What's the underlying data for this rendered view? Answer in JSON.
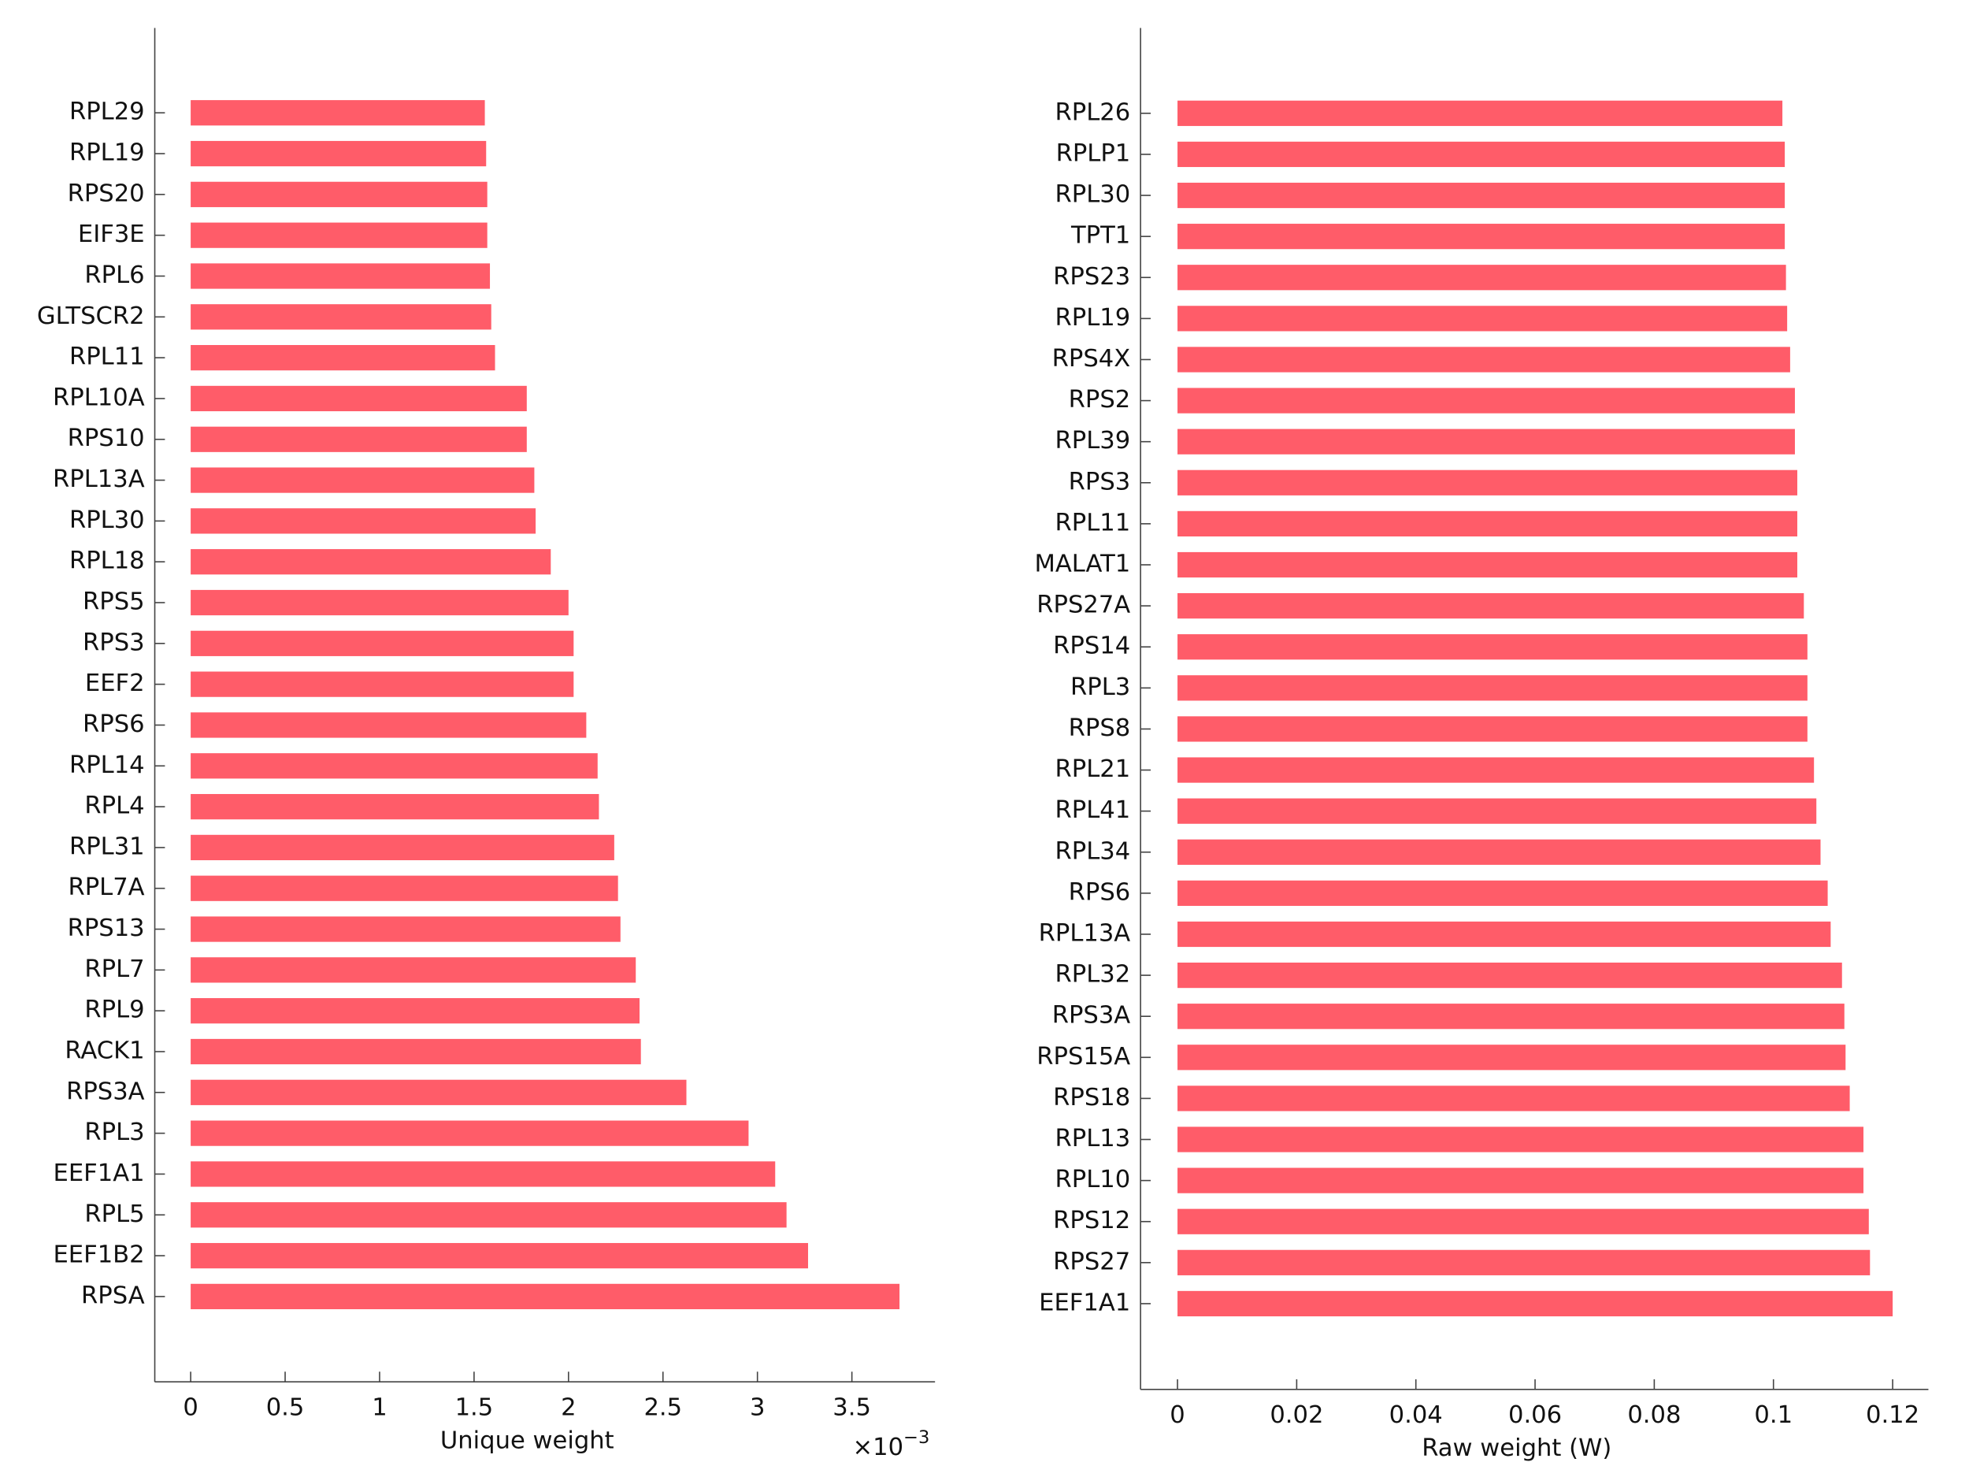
{
  "chart_data": [
    {
      "type": "bar",
      "orientation": "horizontal",
      "color": "#ff5c69",
      "x_label": "Unique weight",
      "x_scale_base": "×10",
      "x_scale_exponent": "−3",
      "xlim": [
        -0.19,
        3.94
      ],
      "xticks": [
        0,
        0.5,
        1,
        1.5,
        2,
        2.5,
        3,
        3.5
      ],
      "categories": [
        "RPL29",
        "RPL19",
        "RPS20",
        "EIF3E",
        "RPL6",
        "GLTSCR2",
        "RPL11",
        "RPL10A",
        "RPS10",
        "RPL13A",
        "RPL30",
        "RPL18",
        "RPS5",
        "RPS3",
        "EEF2",
        "RPS6",
        "RPL14",
        "RPL4",
        "RPL31",
        "RPL7A",
        "RPS13",
        "RPL7",
        "RPL9",
        "RACK1",
        "RPS3A",
        "RPL3",
        "EEF1A1",
        "RPL5",
        "EEF1B2",
        "RPSA"
      ],
      "values": [
        1.557,
        1.564,
        1.57,
        1.57,
        1.584,
        1.591,
        1.611,
        1.779,
        1.779,
        1.819,
        1.826,
        1.906,
        2.0,
        2.027,
        2.027,
        2.094,
        2.154,
        2.161,
        2.242,
        2.262,
        2.275,
        2.356,
        2.376,
        2.383,
        2.624,
        2.953,
        3.094,
        3.154,
        3.268,
        3.752
      ]
    },
    {
      "type": "bar",
      "orientation": "horizontal",
      "color": "#ff5c69",
      "x_label": "Raw weight (W)",
      "xlim": [
        -0.0062,
        0.126
      ],
      "xticks": [
        0,
        0.02,
        0.04,
        0.06,
        0.08,
        0.1,
        0.12
      ],
      "categories": [
        "RPL26",
        "RPLP1",
        "RPL30",
        "TPT1",
        "RPS23",
        "RPL19",
        "RPS4X",
        "RPS2",
        "RPL39",
        "RPS3",
        "RPL11",
        "MALAT1",
        "RPS27A",
        "RPS14",
        "RPL3",
        "RPS8",
        "RPL21",
        "RPL41",
        "RPL34",
        "RPS6",
        "RPL13A",
        "RPL32",
        "RPS3A",
        "RPS15A",
        "RPS18",
        "RPL13",
        "RPL10",
        "RPS12",
        "RPS27",
        "EEF1A1"
      ],
      "values": [
        0.1015,
        0.1019,
        0.1019,
        0.1019,
        0.1021,
        0.1023,
        0.1028,
        0.1036,
        0.1036,
        0.104,
        0.104,
        0.104,
        0.1051,
        0.1057,
        0.1057,
        0.1057,
        0.1068,
        0.1072,
        0.1079,
        0.1091,
        0.1096,
        0.1115,
        0.1119,
        0.1121,
        0.1128,
        0.1151,
        0.1151,
        0.116,
        0.1162,
        0.12
      ]
    }
  ]
}
